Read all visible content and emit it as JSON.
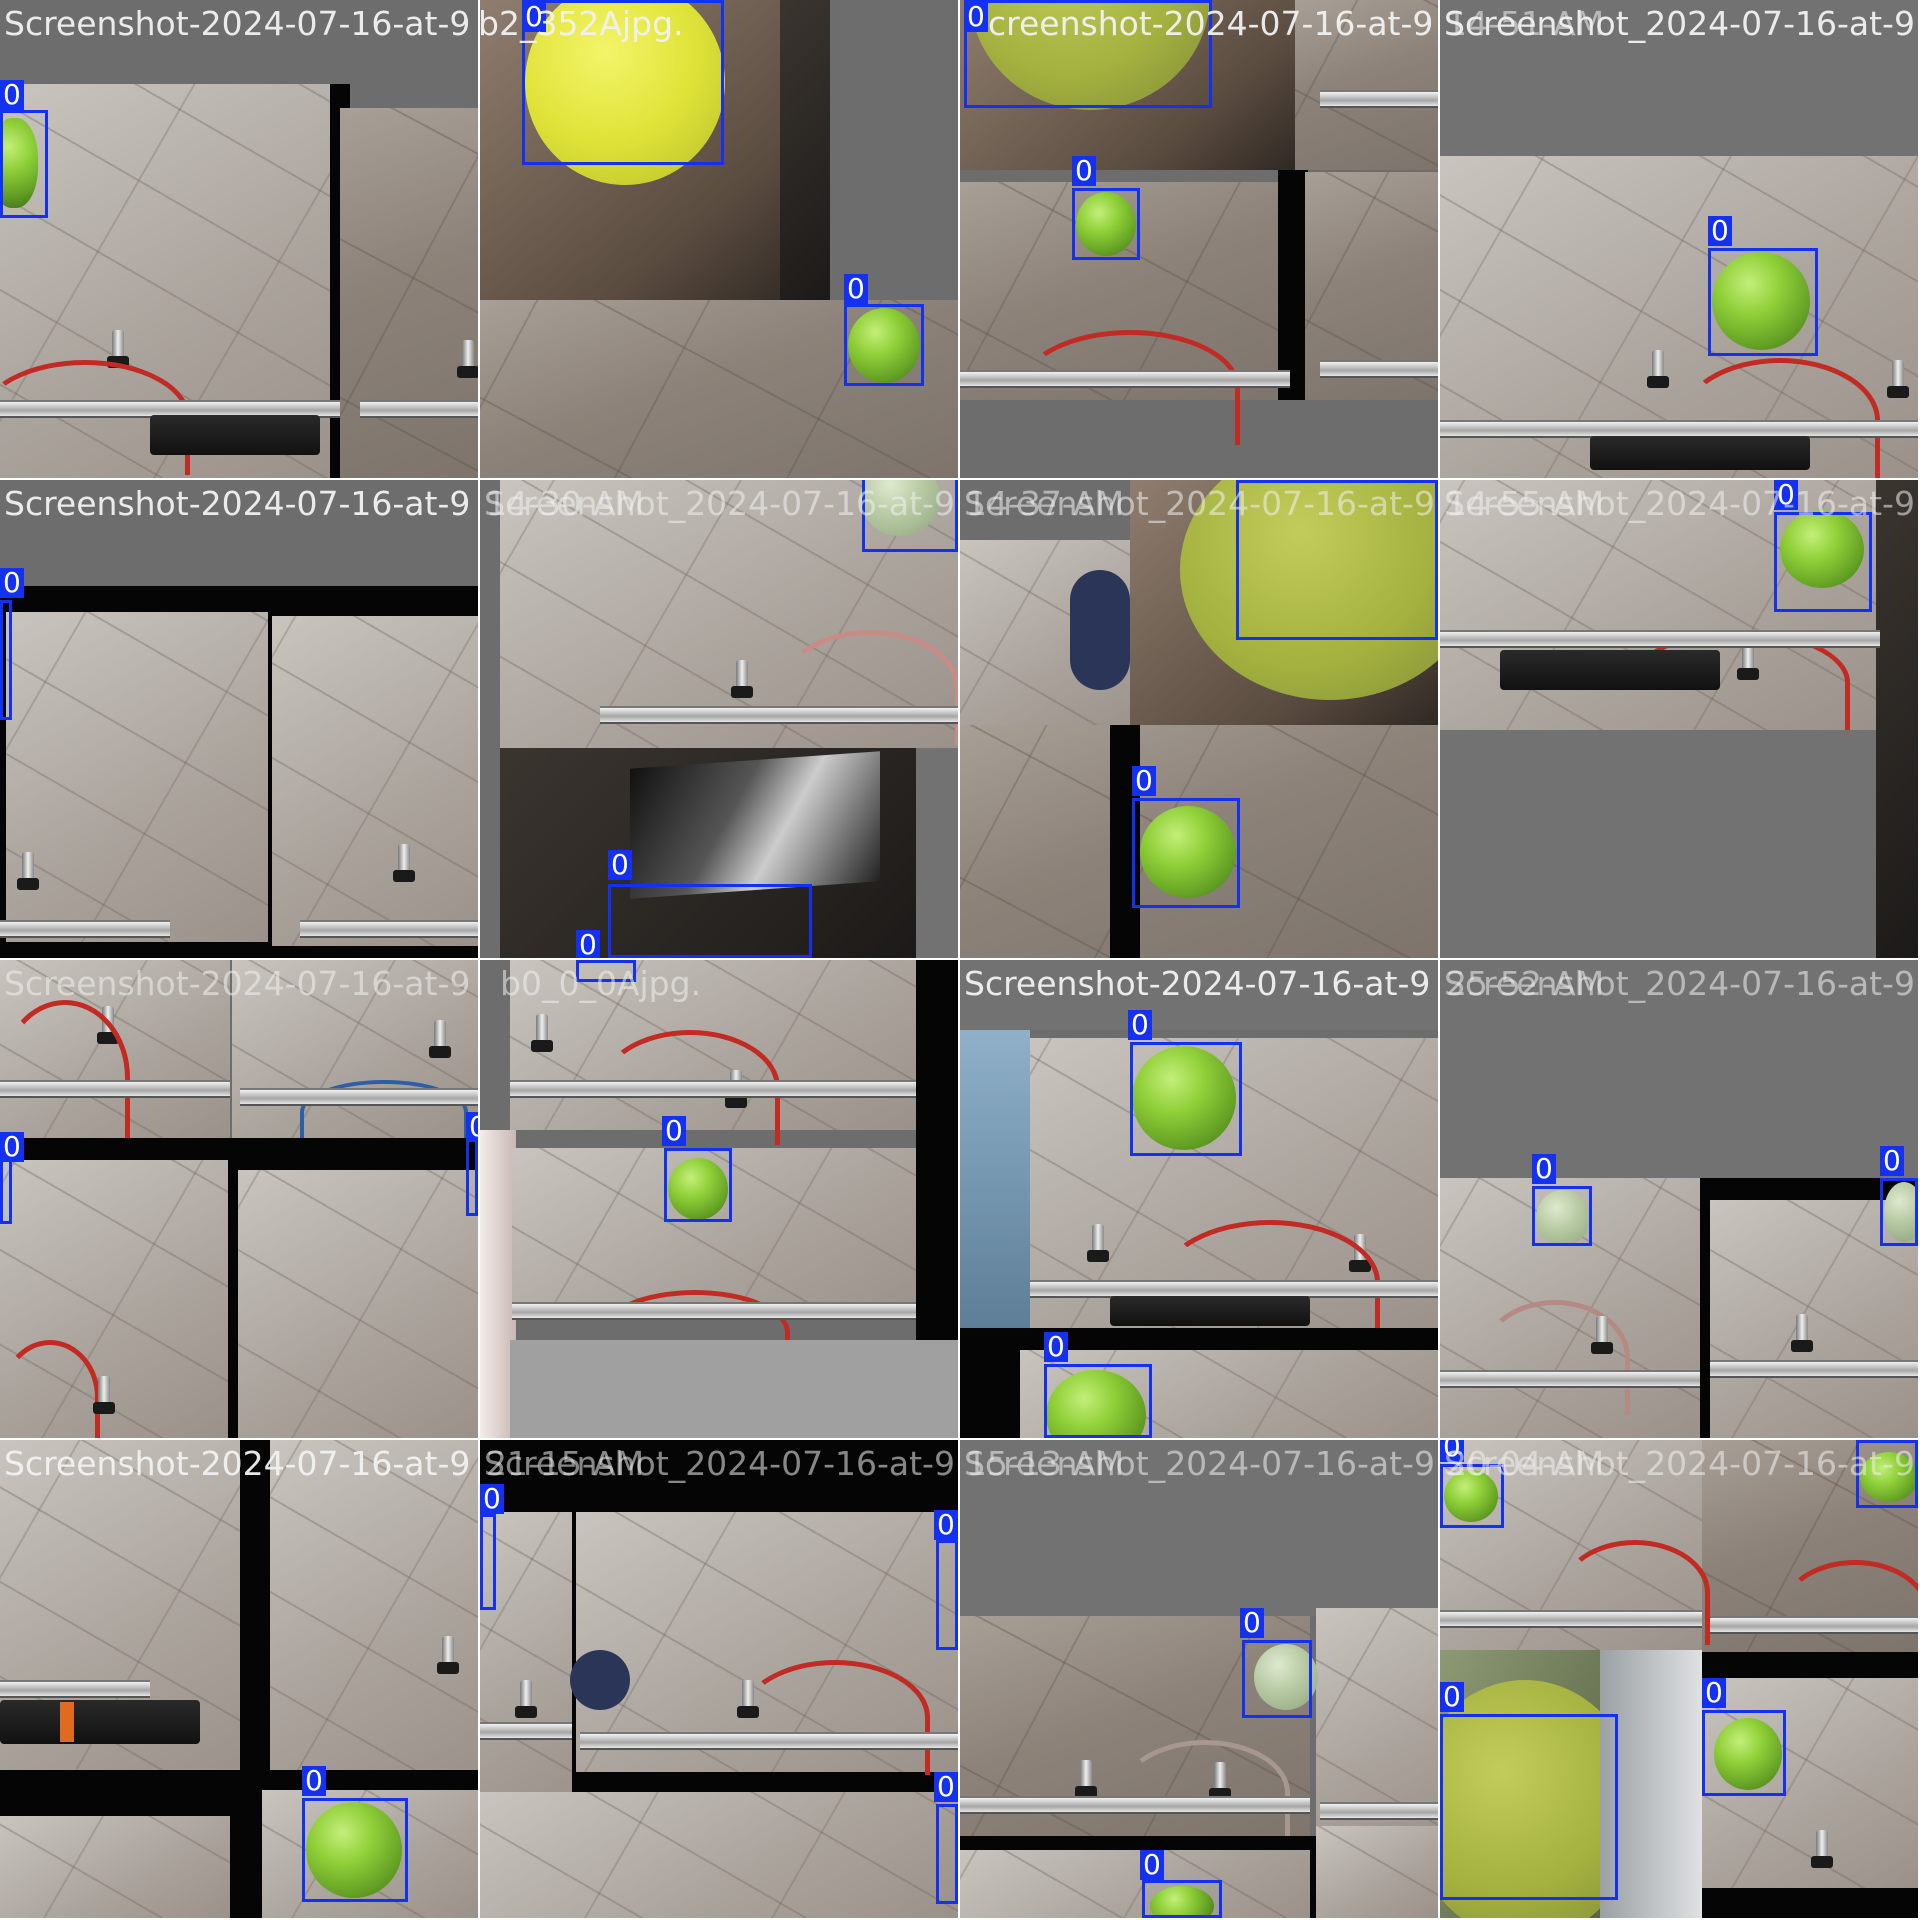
{
  "class_label": "0",
  "captions": {
    "t00": "Screenshot-2024-07-16-at-9",
    "t01": "b2_352Ajpg.",
    "t02": "creenshot-2024-07-16-at-9",
    "t03": "Screenshot_2024-07-16-at-9",
    "t10": "Screenshot-2024-07-16-at-9",
    "t11": "Screenshot_2024-07-16-at-9",
    "t12": "Screenshot_2024-07-16-at-9",
    "t13": "Screenshot_2024-07-16-at-9",
    "t20": "Screenshot-2024-07-16-at-9",
    "t21": "b0_0_0Ajpg.",
    "t22": "Screenshot-2024-07-16-at-9",
    "t23": "Screenshot_2024-07-16-at-9",
    "t30": "Screenshot-2024-07-16-at-9",
    "t31": "Screenshot_2024-07-16-at-9",
    "t32": "Screenshot_2024-07-16-at-9",
    "t33": "Screenshot_2024-07-16-at-9"
  },
  "overlays": {
    "o03": "14-51-AM",
    "o11": "14-30-AM",
    "o12": "14-37-AM",
    "o13": "14-55-AM",
    "o23": "25-52-AM",
    "o31": "21-15-AM",
    "o32": "15-13-AM",
    "o33": "20-04-AM"
  },
  "colors": {
    "box": "#1430f0",
    "label_bg": "#1430f0",
    "label_text": "#ffffff",
    "padding_gray": "#727272"
  }
}
